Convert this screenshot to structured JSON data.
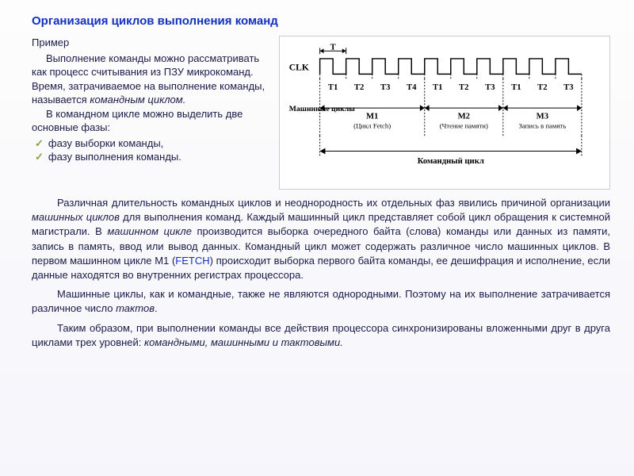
{
  "title": "Организация циклов выполнения команд",
  "example_label": "Пример",
  "intro_p1_a": "Выполнение команды можно рассматривать как процесс считывания из ПЗУ микрокоманд. Время, затрачиваемое на выполнение команды, называется ",
  "intro_p1_term": "командным циклом.",
  "intro_p2": "В командном цикле можно выделить две основные фазы:",
  "bullets": [
    "фазу выборки команды,",
    "фазу выполнения команды."
  ],
  "para1_a": "Различная длительность командных циклов и неоднородность их отдельных фаз явились причиной организации ",
  "para1_term1": "машинных циклов",
  "para1_b": " для выполнения команд. Каждый машинный цикл представляет собой цикл обращения к системной магистрали. В ",
  "para1_term2": "машинном цикле",
  "para1_c": " производится выборка очередного байта (слова) команды или данных из памяти, запись в память, ввод или вывод данных. Командный цикл может содержать различное число машинных циклов. В первом машинном цикле М1 (",
  "para1_fetch": "FETCH",
  "para1_d": ") происходит выборка первого байта команды, ее дешифрация и исполнение, если данные находятся во внутренних регистрах процессора.",
  "para2_a": "Машинные циклы, как и командные, также не являются однородными. Поэтому на их выполнение затрачивается различное число ",
  "para2_term": "тактов",
  "para2_b": ".",
  "para3_a": "Таким образом, при выполнении команды все действия процессора синхронизированы вложенными друг в друга циклами трех уровней: ",
  "para3_term": "командными, машинными и тактовыми.",
  "diagram": {
    "clk_label": "CLK",
    "t_label": "T",
    "ticks_m1": [
      "T1",
      "T2",
      "T3",
      "T4"
    ],
    "ticks_m2": [
      "T1",
      "T2",
      "T3"
    ],
    "ticks_m3": [
      "T1",
      "T2",
      "T3"
    ],
    "mach_label": "Машинные циклы",
    "m1_label": "М1",
    "m1_sub": "(Цикл Fetch)",
    "m2_label": "М2",
    "m2_sub": "(Чтение памяти)",
    "m3_label": "М3",
    "m3_sub": "Запись в память",
    "cmd_label": "Командный цикл",
    "colors": {
      "stroke": "#000000",
      "bg": "#ffffff",
      "text": "#000000"
    },
    "font_size_small": 10,
    "font_size_tick": 11
  }
}
